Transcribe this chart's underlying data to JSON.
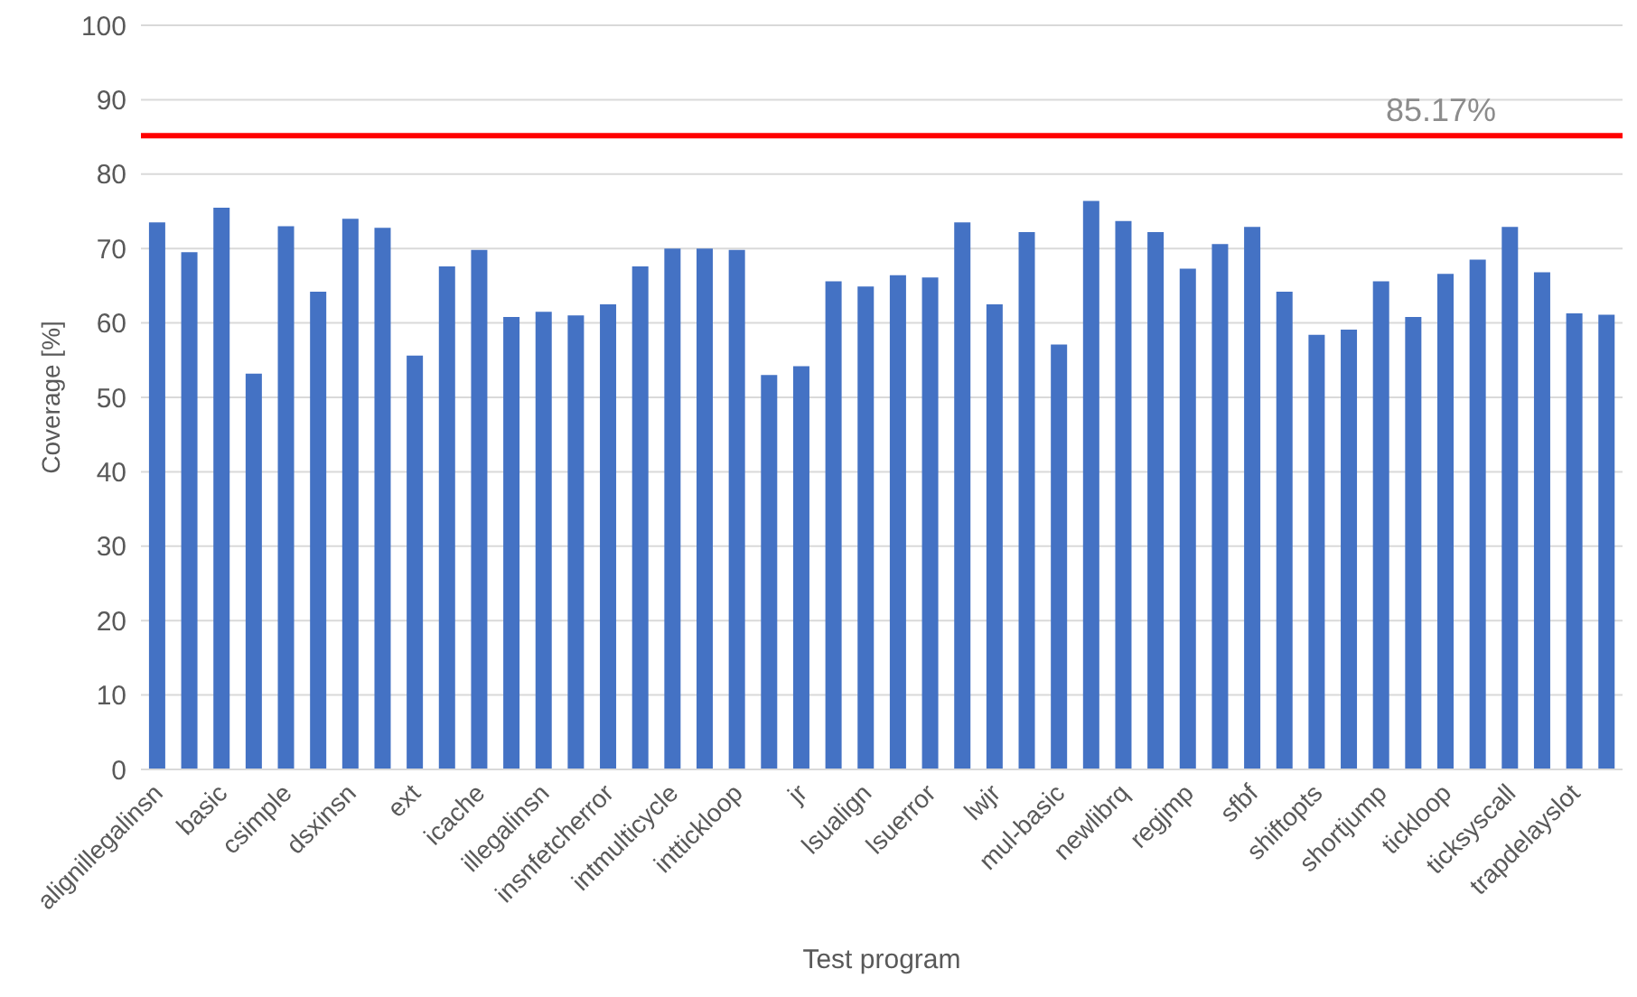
{
  "chart_data": {
    "type": "bar",
    "xlabel": "Test program",
    "ylabel": "Coverage [%]",
    "categories": [
      "alignillegalinsn",
      null,
      "basic",
      null,
      "csimple",
      null,
      "dsxinsn",
      null,
      "ext",
      null,
      "icache",
      null,
      "illegalinsn",
      null,
      "insnfetcherror",
      null,
      "intmulticycle",
      null,
      "inttickloop",
      null,
      "jr",
      null,
      "lsualign",
      null,
      "lsuerror",
      null,
      "lwjr",
      null,
      "mul-basic",
      null,
      "newlibrq",
      null,
      "regjmp",
      null,
      "sfbf",
      null,
      "shiftopts",
      null,
      "shortjump",
      null,
      "tickloop",
      null,
      "ticksyscall",
      null,
      "trapdelayslot",
      null
    ],
    "values": [
      73.5,
      69.5,
      75.5,
      53.2,
      73,
      64.2,
      74,
      72.8,
      55.6,
      67.6,
      69.8,
      60.8,
      61.5,
      61,
      62.5,
      67.6,
      70,
      70,
      69.8,
      53,
      54.2,
      65.6,
      64.9,
      66.4,
      66.1,
      73.5,
      62.5,
      72.2,
      57.1,
      76.4,
      73.7,
      72.2,
      67.3,
      70.6,
      72.9,
      64.2,
      58.4,
      59.1,
      65.6,
      60.8,
      66.6,
      68.5,
      72.9,
      66.8,
      61.3,
      61.1
    ],
    "color": "#4472c4",
    "ylim": [
      0,
      100
    ],
    "yticks": [
      0,
      10,
      20,
      30,
      40,
      50,
      60,
      70,
      80,
      90,
      100
    ],
    "grid": "y",
    "ref_lines": [
      {
        "axis": "y",
        "value": 85.17,
        "label": "85.17%",
        "color": "#ff0000"
      }
    ]
  }
}
